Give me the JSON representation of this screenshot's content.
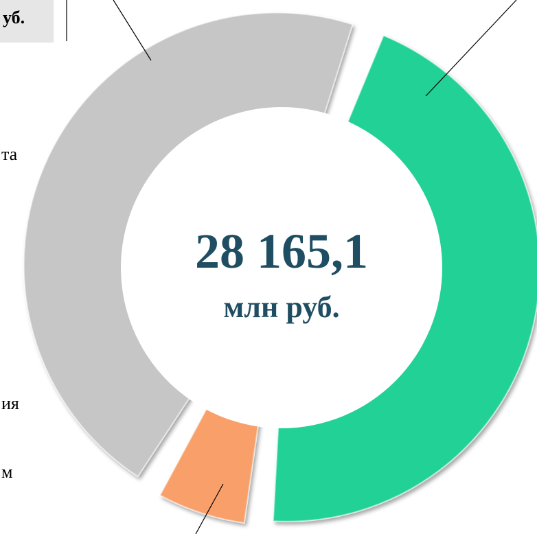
{
  "chart_data": {
    "type": "pie",
    "categories": [
      null,
      null,
      null
    ],
    "values": [
      46,
      7,
      47
    ],
    "colors": [
      "#21d196",
      "#f9a06b",
      "#c6c6c6"
    ],
    "center_value": "28 165,1",
    "center_unit": "млн руб.",
    "annotations": [
      "уб.",
      "та",
      "ия",
      "м"
    ]
  }
}
